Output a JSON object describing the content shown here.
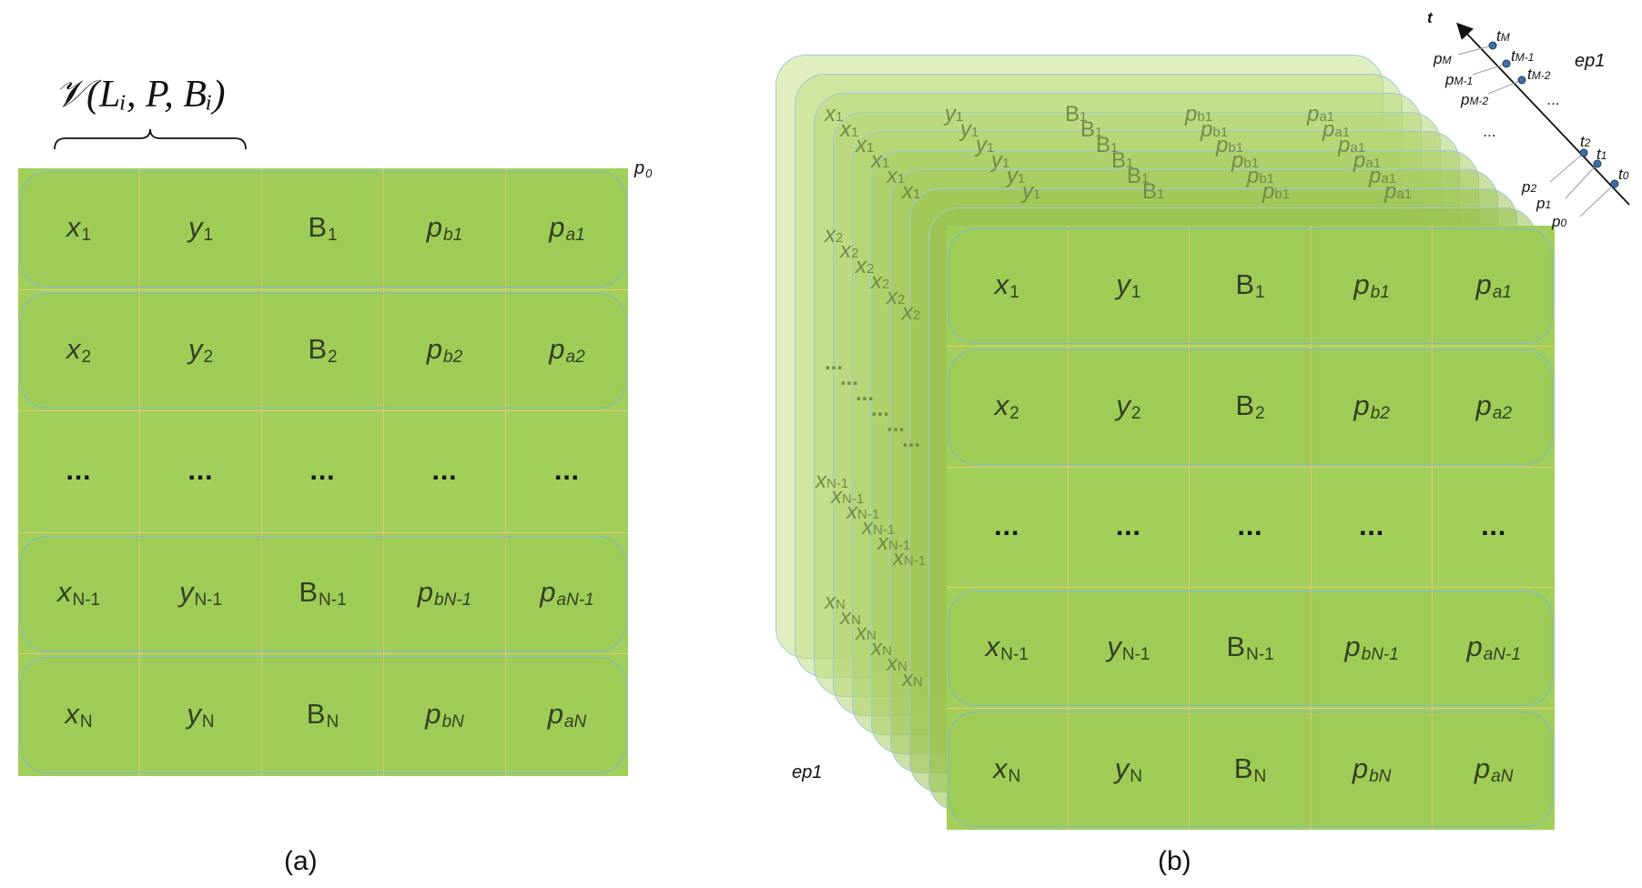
{
  "figure_a": {
    "caption": "(a)",
    "header_formula": "𝒱(Lᵢ, P, Bᵢ)",
    "corner_label": "p",
    "corner_sub": "0",
    "rows": [
      [
        {
          "b": "x",
          "s": "1"
        },
        {
          "b": "y",
          "s": "1"
        },
        {
          "b": "B",
          "s": "1"
        },
        {
          "b": "p",
          "s": "b1"
        },
        {
          "b": "p",
          "s": "a1"
        }
      ],
      [
        {
          "b": "x",
          "s": "2"
        },
        {
          "b": "y",
          "s": "2"
        },
        {
          "b": "B",
          "s": "2"
        },
        {
          "b": "p",
          "s": "b2"
        },
        {
          "b": "p",
          "s": "a2"
        }
      ],
      [
        {
          "b": "...",
          "s": ""
        },
        {
          "b": "...",
          "s": ""
        },
        {
          "b": "...",
          "s": ""
        },
        {
          "b": "...",
          "s": ""
        },
        {
          "b": "...",
          "s": ""
        }
      ],
      [
        {
          "b": "x",
          "s": "N-1"
        },
        {
          "b": "y",
          "s": "N-1"
        },
        {
          "b": "B",
          "s": "N-1"
        },
        {
          "b": "p",
          "s": "bN-1"
        },
        {
          "b": "p",
          "s": "aN-1"
        }
      ],
      [
        {
          "b": "x",
          "s": "N"
        },
        {
          "b": "y",
          "s": "N"
        },
        {
          "b": "B",
          "s": "N"
        },
        {
          "b": "p",
          "s": "bN"
        },
        {
          "b": "p",
          "s": "aN"
        }
      ]
    ]
  },
  "figure_b": {
    "caption": "(b)",
    "ep_bottom": "ep1",
    "ep_top": "ep1",
    "axis_label": "t",
    "dots_axis": "...",
    "dots_top": "...",
    "time_labels": [
      {
        "b": "t",
        "s": "M"
      },
      {
        "b": "t",
        "s": "M-1"
      },
      {
        "b": "t",
        "s": "M-2"
      },
      {
        "b": "t",
        "s": "2"
      },
      {
        "b": "t",
        "s": "1"
      },
      {
        "b": "t",
        "s": "0"
      }
    ],
    "price_labels": [
      {
        "b": "p",
        "s": "M"
      },
      {
        "b": "p",
        "s": "M-1"
      },
      {
        "b": "p",
        "s": "M-2"
      },
      {
        "b": "p",
        "s": "2"
      },
      {
        "b": "p",
        "s": "1"
      },
      {
        "b": "p",
        "s": "0"
      }
    ],
    "ghost_row1": [
      "x1",
      "y1",
      "B1",
      "pb1",
      "pa1"
    ],
    "ghost_col_x2": "x2",
    "ghost_col_xn1": "xN-1",
    "ghost_col_xn": "xN",
    "ghost_dots": "..."
  }
}
